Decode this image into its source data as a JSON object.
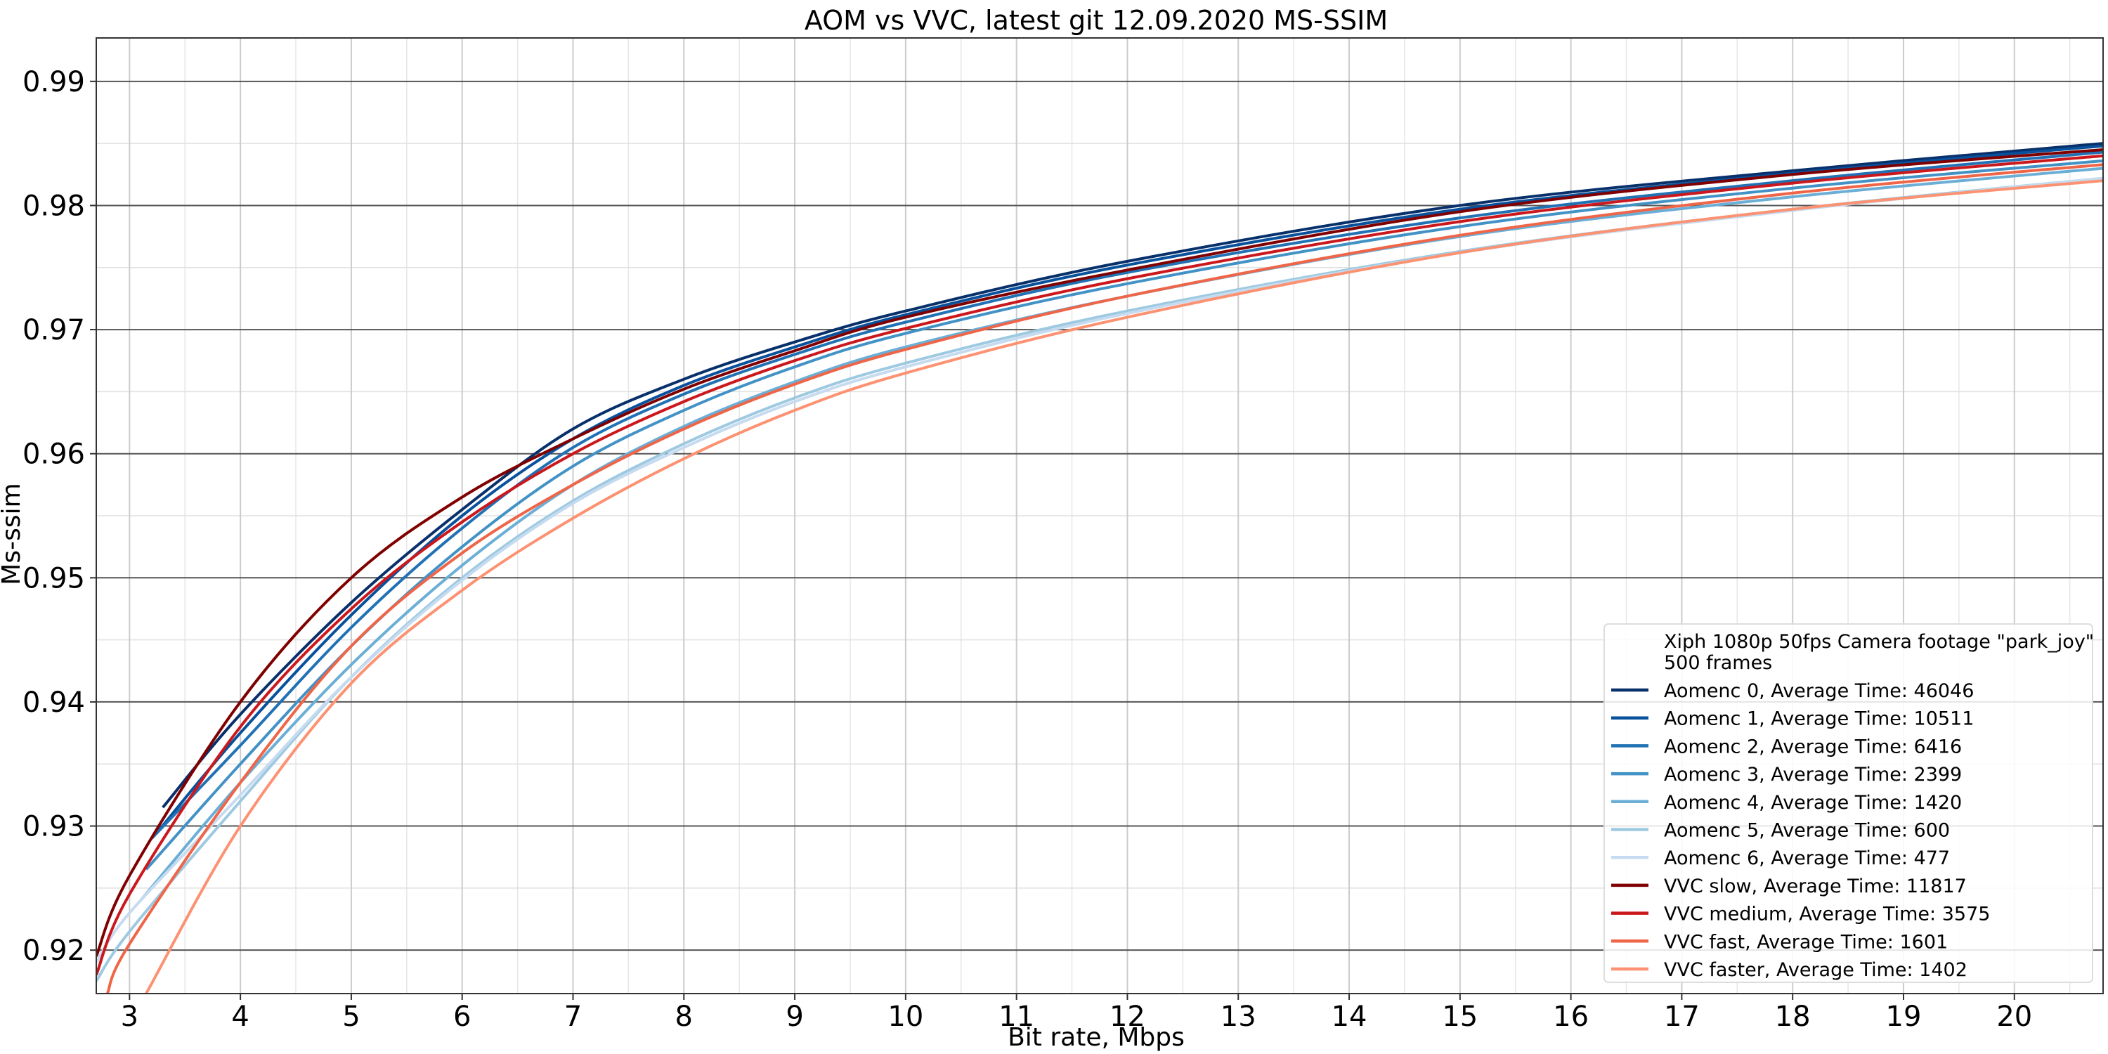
{
  "chart_data": {
    "type": "line",
    "title": "AOM vs VVC, latest git 12.09.2020 MS-SSIM",
    "xlabel": "Bit rate, Mbps",
    "ylabel": "Ms-ssim",
    "xlim": [
      2.7,
      20.8
    ],
    "ylim": [
      0.9165,
      0.9935
    ],
    "x_ticks": [
      3,
      4,
      5,
      6,
      7,
      8,
      9,
      10,
      11,
      12,
      13,
      14,
      15,
      16,
      17,
      18,
      19,
      20
    ],
    "x_tick_labels": [
      "3",
      "4",
      "5",
      "6",
      "7",
      "8",
      "9",
      "10",
      "11",
      "12",
      "13",
      "14",
      "15",
      "16",
      "17",
      "18",
      "19",
      "20"
    ],
    "y_ticks": [
      0.92,
      0.93,
      0.94,
      0.95,
      0.96,
      0.97,
      0.98,
      0.99
    ],
    "y_tick_labels": [
      "0.92",
      "0.93",
      "0.94",
      "0.95",
      "0.96",
      "0.97",
      "0.98",
      "0.99"
    ],
    "grid": true,
    "legend_position": "bottom-right",
    "legend_header": [
      "Xiph 1080p 50fps Camera footage \"park_joy\"",
      "500 frames"
    ],
    "series": [
      {
        "name": "Aomenc 0, Average Time: 46046",
        "color": "#08306b",
        "x": [
          3.3,
          4,
          5,
          6,
          7,
          8,
          9,
          10,
          12,
          15,
          18,
          20.8
        ],
        "y": [
          0.9315,
          0.939,
          0.948,
          0.9555,
          0.962,
          0.966,
          0.969,
          0.9715,
          0.9755,
          0.98,
          0.9828,
          0.985
        ]
      },
      {
        "name": "Aomenc 1, Average Time: 10511",
        "color": "#08519c",
        "x": [
          3.25,
          4,
          5,
          6,
          7,
          8,
          9,
          10,
          12,
          15,
          18,
          20.8
        ],
        "y": [
          0.9295,
          0.9375,
          0.947,
          0.955,
          0.9612,
          0.9655,
          0.9686,
          0.9712,
          0.9752,
          0.9797,
          0.9826,
          0.9848
        ]
      },
      {
        "name": "Aomenc 2, Average Time: 6416",
        "color": "#2171b5",
        "x": [
          3.2,
          4,
          5,
          6,
          7,
          8,
          9,
          10,
          12,
          15,
          18,
          20.8
        ],
        "y": [
          0.929,
          0.9365,
          0.946,
          0.954,
          0.9605,
          0.9648,
          0.968,
          0.9706,
          0.9746,
          0.979,
          0.982,
          0.9843
        ]
      },
      {
        "name": "Aomenc 3, Average Time: 2399",
        "color": "#4292c6",
        "x": [
          3.15,
          4,
          5,
          6,
          7,
          8,
          9,
          10,
          12,
          15,
          18,
          20.8
        ],
        "y": [
          0.9265,
          0.935,
          0.9445,
          0.9525,
          0.959,
          0.9635,
          0.967,
          0.9697,
          0.9737,
          0.9783,
          0.9814,
          0.9836
        ]
      },
      {
        "name": "Aomenc 4, Average Time: 1420",
        "color": "#6baed6",
        "x": [
          3.1,
          4,
          5,
          6,
          7,
          8,
          9,
          10,
          12,
          15,
          18,
          20.8
        ],
        "y": [
          0.924,
          0.9335,
          0.943,
          0.951,
          0.9575,
          0.9622,
          0.9658,
          0.9686,
          0.9727,
          0.9775,
          0.9807,
          0.983
        ]
      },
      {
        "name": "Aomenc 5, Average Time: 600",
        "color": "#9ecae1",
        "x": [
          2.7,
          3,
          4,
          5,
          6,
          7,
          8,
          9,
          10,
          12,
          15,
          18,
          20.8
        ],
        "y": [
          0.9175,
          0.9215,
          0.932,
          0.942,
          0.95,
          0.9562,
          0.9608,
          0.9645,
          0.9673,
          0.9715,
          0.9763,
          0.9797,
          0.9822
        ]
      },
      {
        "name": "Aomenc 6, Average Time: 477",
        "color": "#c6dbef",
        "x": [
          2.7,
          3,
          4,
          5,
          6,
          7,
          8,
          9,
          10,
          12,
          15,
          18,
          20.8
        ],
        "y": [
          0.919,
          0.923,
          0.9325,
          0.942,
          0.9498,
          0.956,
          0.9605,
          0.9642,
          0.967,
          0.9713,
          0.9762,
          0.9796,
          0.9822
        ]
      },
      {
        "name": "VVC slow, Average Time: 11817",
        "color": "#800000",
        "x": [
          2.7,
          3,
          4,
          5,
          6,
          7,
          8,
          9,
          10,
          12,
          15,
          18,
          20.8
        ],
        "y": [
          0.9195,
          0.926,
          0.94,
          0.95,
          0.9565,
          0.9612,
          0.9652,
          0.9683,
          0.971,
          0.9748,
          0.9795,
          0.9825,
          0.9845
        ]
      },
      {
        "name": "VVC medium, Average Time: 3575",
        "color": "#cb181d",
        "x": [
          2.7,
          3,
          4,
          5,
          6,
          7,
          8,
          9,
          10,
          12,
          15,
          18,
          20.8
        ],
        "y": [
          0.918,
          0.9245,
          0.938,
          0.9475,
          0.9545,
          0.96,
          0.9642,
          0.9675,
          0.9701,
          0.9741,
          0.9787,
          0.9818,
          0.984
        ]
      },
      {
        "name": "VVC fast, Average Time: 1601",
        "color": "#ef6548",
        "x": [
          2.8,
          3,
          4,
          5,
          6,
          7,
          8,
          9,
          10,
          12,
          15,
          18,
          20.8
        ],
        "y": [
          0.9165,
          0.9205,
          0.9335,
          0.9445,
          0.952,
          0.9575,
          0.962,
          0.9656,
          0.9684,
          0.9727,
          0.9776,
          0.981,
          0.9833
        ]
      },
      {
        "name": "VVC faster, Average Time: 1402",
        "color": "#fc9272",
        "x": [
          3.15,
          4,
          5,
          6,
          7,
          8,
          9,
          10,
          12,
          15,
          18,
          20.8
        ],
        "y": [
          0.9165,
          0.93,
          0.9415,
          0.949,
          0.9548,
          0.9596,
          0.9635,
          0.9665,
          0.971,
          0.9762,
          0.9797,
          0.982
        ]
      }
    ]
  }
}
